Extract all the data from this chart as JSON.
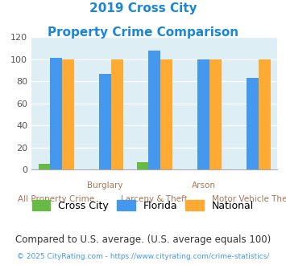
{
  "title_line1": "2019 Cross City",
  "title_line2": "Property Crime Comparison",
  "title_color": "#1a86d9",
  "categories": [
    "All Property Crime",
    "Burglary",
    "Larceny & Theft",
    "Arson",
    "Motor Vehicle Theft"
  ],
  "x_labels_top": [
    "",
    "Burglary",
    "",
    "Arson",
    ""
  ],
  "x_labels_bottom": [
    "All Property Crime",
    "",
    "Larceny & Theft",
    "",
    "Motor Vehicle Theft"
  ],
  "cross_city": [
    5,
    0,
    7,
    0,
    0
  ],
  "florida": [
    101,
    87,
    108,
    100,
    83
  ],
  "national": [
    100,
    100,
    100,
    100,
    100
  ],
  "cross_city_color": "#66bb44",
  "florida_color": "#4499ee",
  "national_color": "#ffaa33",
  "ylim": [
    0,
    120
  ],
  "yticks": [
    0,
    20,
    40,
    60,
    80,
    100,
    120
  ],
  "plot_bg_color": "#ddeef5",
  "grid_color": "#ffffff",
  "legend_labels": [
    "Cross City",
    "Florida",
    "National"
  ],
  "footnote1": "Compared to U.S. average. (U.S. average equals 100)",
  "footnote2": "© 2025 CityRating.com - https://www.cityrating.com/crime-statistics/",
  "footnote1_color": "#333333",
  "footnote1_size": 8.5,
  "footnote2_color": "#4499ee",
  "footnote2_size": 6.5,
  "xlabel_color": "#aa7755",
  "ylabel_color": "#555555"
}
